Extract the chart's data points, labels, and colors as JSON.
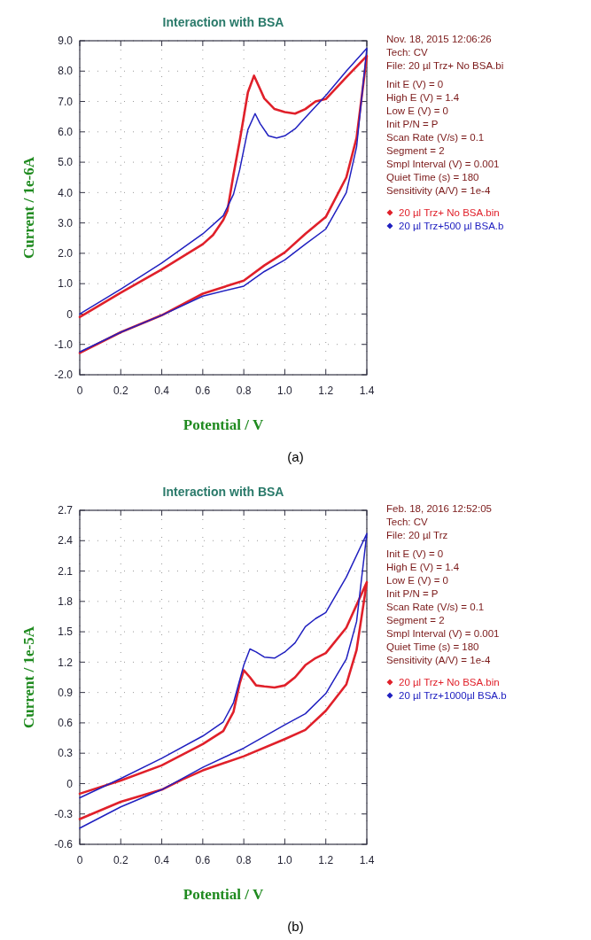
{
  "chart_data": [
    {
      "type": "line",
      "title": "Interaction with BSA",
      "xlabel": "Potential / V",
      "ylabel": "Current / 1e-6A",
      "xlim": [
        0,
        1.4
      ],
      "ylim": [
        -2,
        9
      ],
      "xticks": [
        0,
        0.2,
        0.4,
        0.6,
        0.8,
        {
          "value": 1,
          "label": "1.0"
        },
        1.2,
        1.4
      ],
      "yticks": [
        {
          "value": -2,
          "label": "-2.0"
        },
        {
          "value": -1,
          "label": "-1.0"
        },
        0,
        {
          "value": 1,
          "label": "1.0"
        },
        {
          "value": 2,
          "label": "2.0"
        },
        {
          "value": 3,
          "label": "3.0"
        },
        {
          "value": 4,
          "label": "4.0"
        },
        {
          "value": 5,
          "label": "5.0"
        },
        {
          "value": 6,
          "label": "6.0"
        },
        {
          "value": 7,
          "label": "7.0"
        },
        {
          "value": 8,
          "label": "8.0"
        },
        {
          "value": 9,
          "label": "9.0"
        }
      ],
      "grid": true,
      "legend": "right",
      "marker": "none",
      "line_style": "solid",
      "series": [
        {
          "name": "20 µl Trz+ No BSA.bin",
          "color": "#e0202a",
          "x": [
            0,
            0.2,
            0.4,
            0.6,
            0.65,
            0.7,
            0.72,
            0.75,
            0.78,
            0.8,
            0.82,
            0.85,
            0.88,
            0.9,
            0.95,
            1.0,
            1.05,
            1.1,
            1.15,
            1.2,
            1.3,
            1.4,
            1.35,
            1.3,
            1.2,
            1.1,
            1.0,
            0.9,
            0.8,
            0.6,
            0.4,
            0.2,
            0
          ],
          "values": [
            -0.1,
            0.7,
            1.47,
            2.3,
            2.6,
            3.1,
            3.4,
            4.6,
            5.7,
            6.5,
            7.3,
            7.85,
            7.4,
            7.1,
            6.75,
            6.65,
            6.6,
            6.75,
            7.0,
            7.08,
            7.8,
            8.5,
            5.8,
            4.5,
            3.2,
            2.64,
            2.03,
            1.6,
            1.1,
            0.67,
            -0.04,
            -0.6,
            -1.28
          ]
        },
        {
          "name": "20 µl Trz+500 µl BSA.b",
          "color": "#2020c0",
          "x": [
            0,
            0.2,
            0.4,
            0.6,
            0.7,
            0.75,
            0.78,
            0.82,
            0.855,
            0.88,
            0.92,
            0.96,
            1.0,
            1.05,
            1.1,
            1.2,
            1.3,
            1.4,
            1.35,
            1.3,
            1.2,
            1.1,
            1.0,
            0.9,
            0.8,
            0.6,
            0.4,
            0.2,
            0
          ],
          "values": [
            0,
            0.82,
            1.68,
            2.64,
            3.24,
            3.95,
            4.75,
            6.07,
            6.6,
            6.27,
            5.87,
            5.8,
            5.87,
            6.1,
            6.47,
            7.2,
            8.0,
            8.75,
            5.5,
            4.0,
            2.8,
            2.3,
            1.78,
            1.4,
            0.92,
            0.59,
            -0.04,
            -0.6,
            -1.25
          ]
        }
      ],
      "annotations": [
        "Nov. 18, 2015   12:06:26",
        "Tech: CV",
        "File: 20 µl Trz+ No BSA.bi",
        "Init E (V) = 0",
        "High E (V) = 1.4",
        "Low E (V) = 0",
        "Init P/N = P",
        "Scan Rate (V/s) = 0.1",
        "Segment = 2",
        "Smpl Interval (V) = 0.001",
        "Quiet Time (s) = 180",
        "Sensitivity (A/V) = 1e-4",
        "(a)"
      ]
    },
    {
      "type": "line",
      "title": "Interaction with BSA",
      "xlabel": "Potential / V",
      "ylabel": "Current / 1e-5A",
      "xlim": [
        0,
        1.4
      ],
      "ylim": [
        -0.6,
        2.7
      ],
      "xticks": [
        0,
        0.2,
        0.4,
        0.6,
        0.8,
        {
          "value": 1,
          "label": "1.0"
        },
        1.2,
        1.4
      ],
      "yticks": [
        -0.6,
        -0.3,
        0,
        0.3,
        0.6,
        0.9,
        1.2,
        1.5,
        1.8,
        2.1,
        2.4,
        2.7
      ],
      "grid": true,
      "legend": "right",
      "marker": "none",
      "line_style": "solid",
      "series": [
        {
          "name": "20 µl Trz+ No BSA.bin",
          "color": "#e0202a",
          "x": [
            0,
            0.2,
            0.4,
            0.6,
            0.7,
            0.75,
            0.78,
            0.8,
            0.83,
            0.86,
            0.9,
            0.95,
            1.0,
            1.05,
            1.1,
            1.15,
            1.2,
            1.3,
            1.4,
            1.35,
            1.3,
            1.2,
            1.1,
            1.0,
            0.8,
            0.6,
            0.5,
            0.4,
            0.2,
            0
          ],
          "values": [
            -0.1,
            0.03,
            0.18,
            0.39,
            0.52,
            0.71,
            0.99,
            1.12,
            1.05,
            0.97,
            0.96,
            0.95,
            0.97,
            1.05,
            1.17,
            1.24,
            1.29,
            1.54,
            1.99,
            1.32,
            0.98,
            0.72,
            0.53,
            0.44,
            0.27,
            0.13,
            0.04,
            -0.06,
            -0.18,
            -0.35
          ]
        },
        {
          "name": "20 µl Trz+1000µl BSA.b",
          "color": "#2020c0",
          "x": [
            0,
            0.2,
            0.4,
            0.6,
            0.7,
            0.75,
            0.8,
            0.83,
            0.86,
            0.9,
            0.95,
            1.0,
            1.05,
            1.1,
            1.15,
            1.2,
            1.3,
            1.4,
            1.35,
            1.3,
            1.2,
            1.1,
            1.0,
            0.8,
            0.6,
            0.4,
            0.2,
            0
          ],
          "values": [
            -0.14,
            0.05,
            0.25,
            0.47,
            0.61,
            0.8,
            1.17,
            1.33,
            1.3,
            1.25,
            1.24,
            1.3,
            1.39,
            1.55,
            1.63,
            1.69,
            2.04,
            2.47,
            1.6,
            1.23,
            0.89,
            0.69,
            0.58,
            0.35,
            0.16,
            -0.06,
            -0.23,
            -0.44
          ]
        }
      ],
      "annotations": [
        "Feb. 18, 2016   12:52:05",
        "Tech: CV",
        "File: 20 µl Trz",
        "Init E (V) = 0",
        "High E (V) = 1.4",
        "Low E (V) = 0",
        "Init P/N = P",
        "Scan Rate (V/s) = 0.1",
        "Segment = 2",
        "Smpl Interval (V) = 0.001",
        "Quiet Time (s) = 180",
        "Sensitivity (A/V) = 1e-4",
        "(b)"
      ]
    }
  ]
}
